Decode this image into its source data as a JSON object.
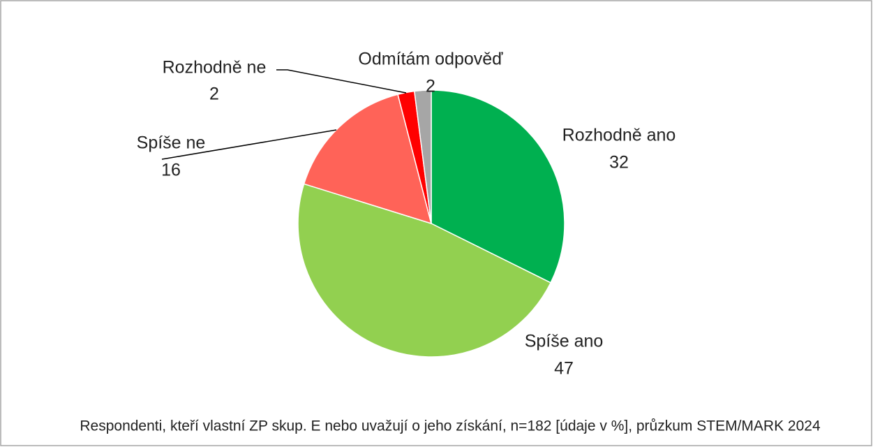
{
  "chart_data": {
    "type": "pie",
    "categories": [
      "Rozhodně ano",
      "Spíše ano",
      "Spíše ne",
      "Rozhodně ne",
      "Odmítám odpověď"
    ],
    "values": [
      32,
      47,
      16,
      2,
      2
    ],
    "colors": [
      "#00b050",
      "#92d050",
      "#ff6358",
      "#ff0000",
      "#a6a6a6"
    ],
    "note": "Respondenti, kteří vlastní ZP skup. E nebo uvažují o jeho získání, n=182 [údaje v %], průzkum STEM/MARK 2024"
  }
}
